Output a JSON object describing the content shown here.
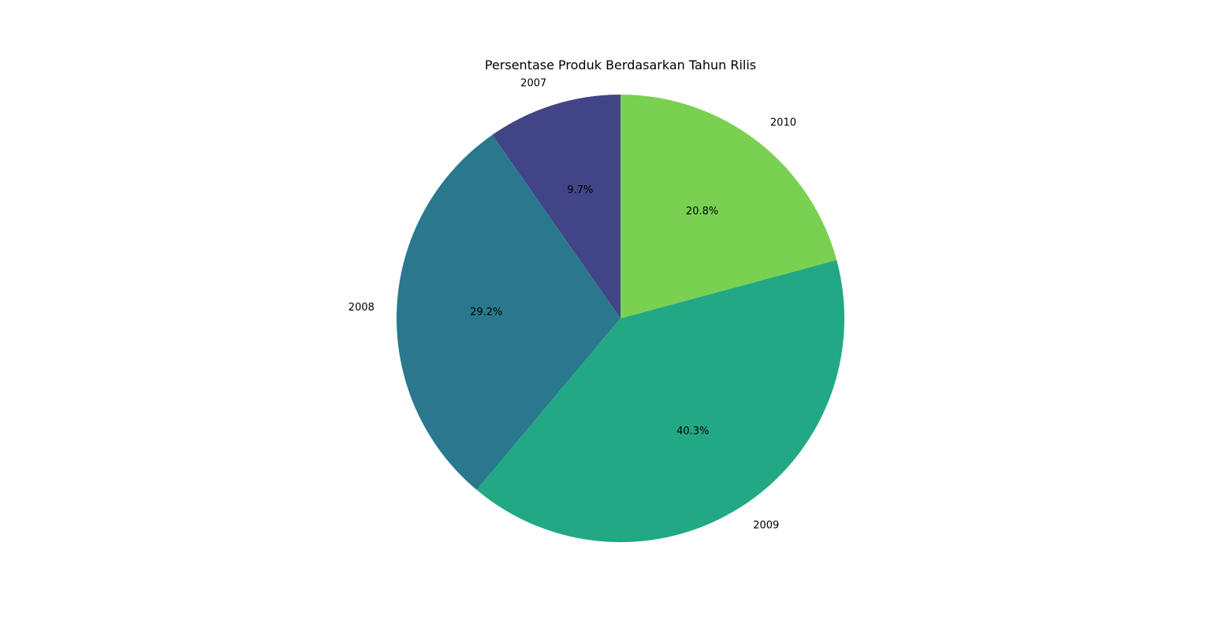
{
  "chart_data": {
    "type": "pie",
    "title": "Persentase Produk Berdasarkan Tahun Rilis",
    "start_angle_deg": 90,
    "direction": "counterclockwise",
    "slices": [
      {
        "label": "2007",
        "value": 9.7,
        "pct_label": "9.7%",
        "color": "#414487"
      },
      {
        "label": "2008",
        "value": 29.2,
        "pct_label": "29.2%",
        "color": "#2a788e"
      },
      {
        "label": "2009",
        "value": 40.3,
        "pct_label": "40.3%",
        "color": "#22a884"
      },
      {
        "label": "2010",
        "value": 20.8,
        "pct_label": "20.8%",
        "color": "#7ad151"
      }
    ]
  }
}
